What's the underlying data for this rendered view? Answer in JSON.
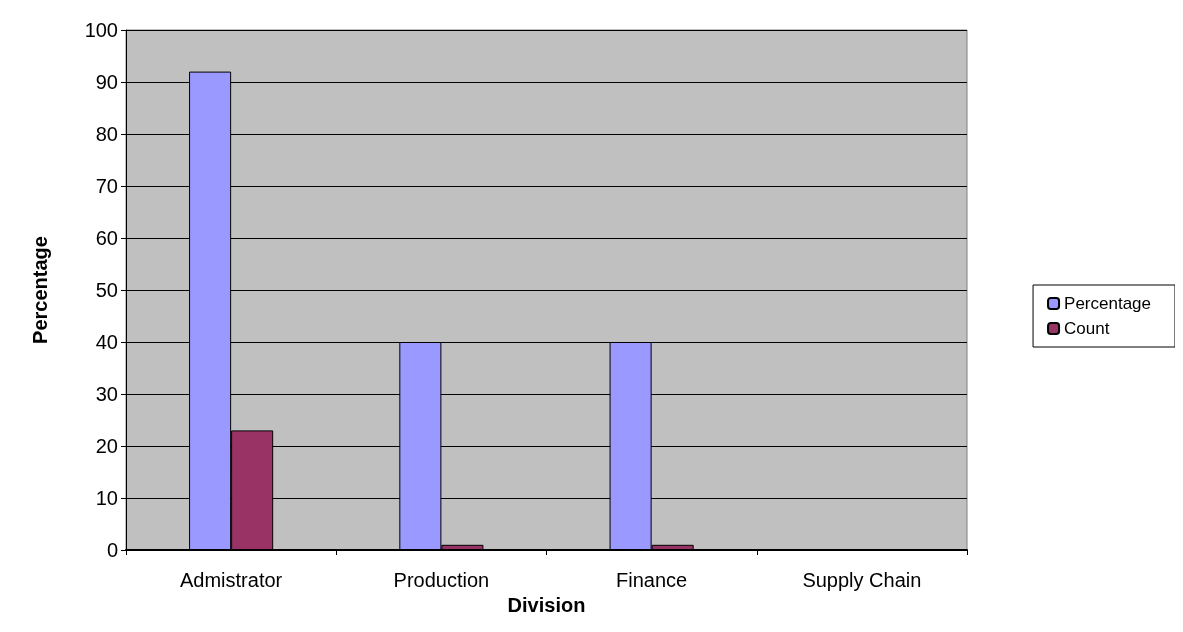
{
  "chart_data": {
    "type": "bar",
    "xlabel": "Division",
    "ylabel": "Percentage",
    "categories": [
      "Admistrator",
      "Production",
      "Finance",
      "Supply Chain"
    ],
    "series": [
      {
        "name": "Percentage",
        "color": "#9999ff",
        "values": [
          92,
          40,
          40,
          null
        ]
      },
      {
        "name": "Count",
        "color": "#993366",
        "values": [
          23,
          1,
          1,
          null
        ]
      }
    ],
    "ylim": [
      0,
      100
    ],
    "yticks": [
      0,
      10,
      20,
      30,
      40,
      50,
      60,
      70,
      80,
      90,
      100
    ],
    "grid": "y",
    "legend": "right"
  }
}
